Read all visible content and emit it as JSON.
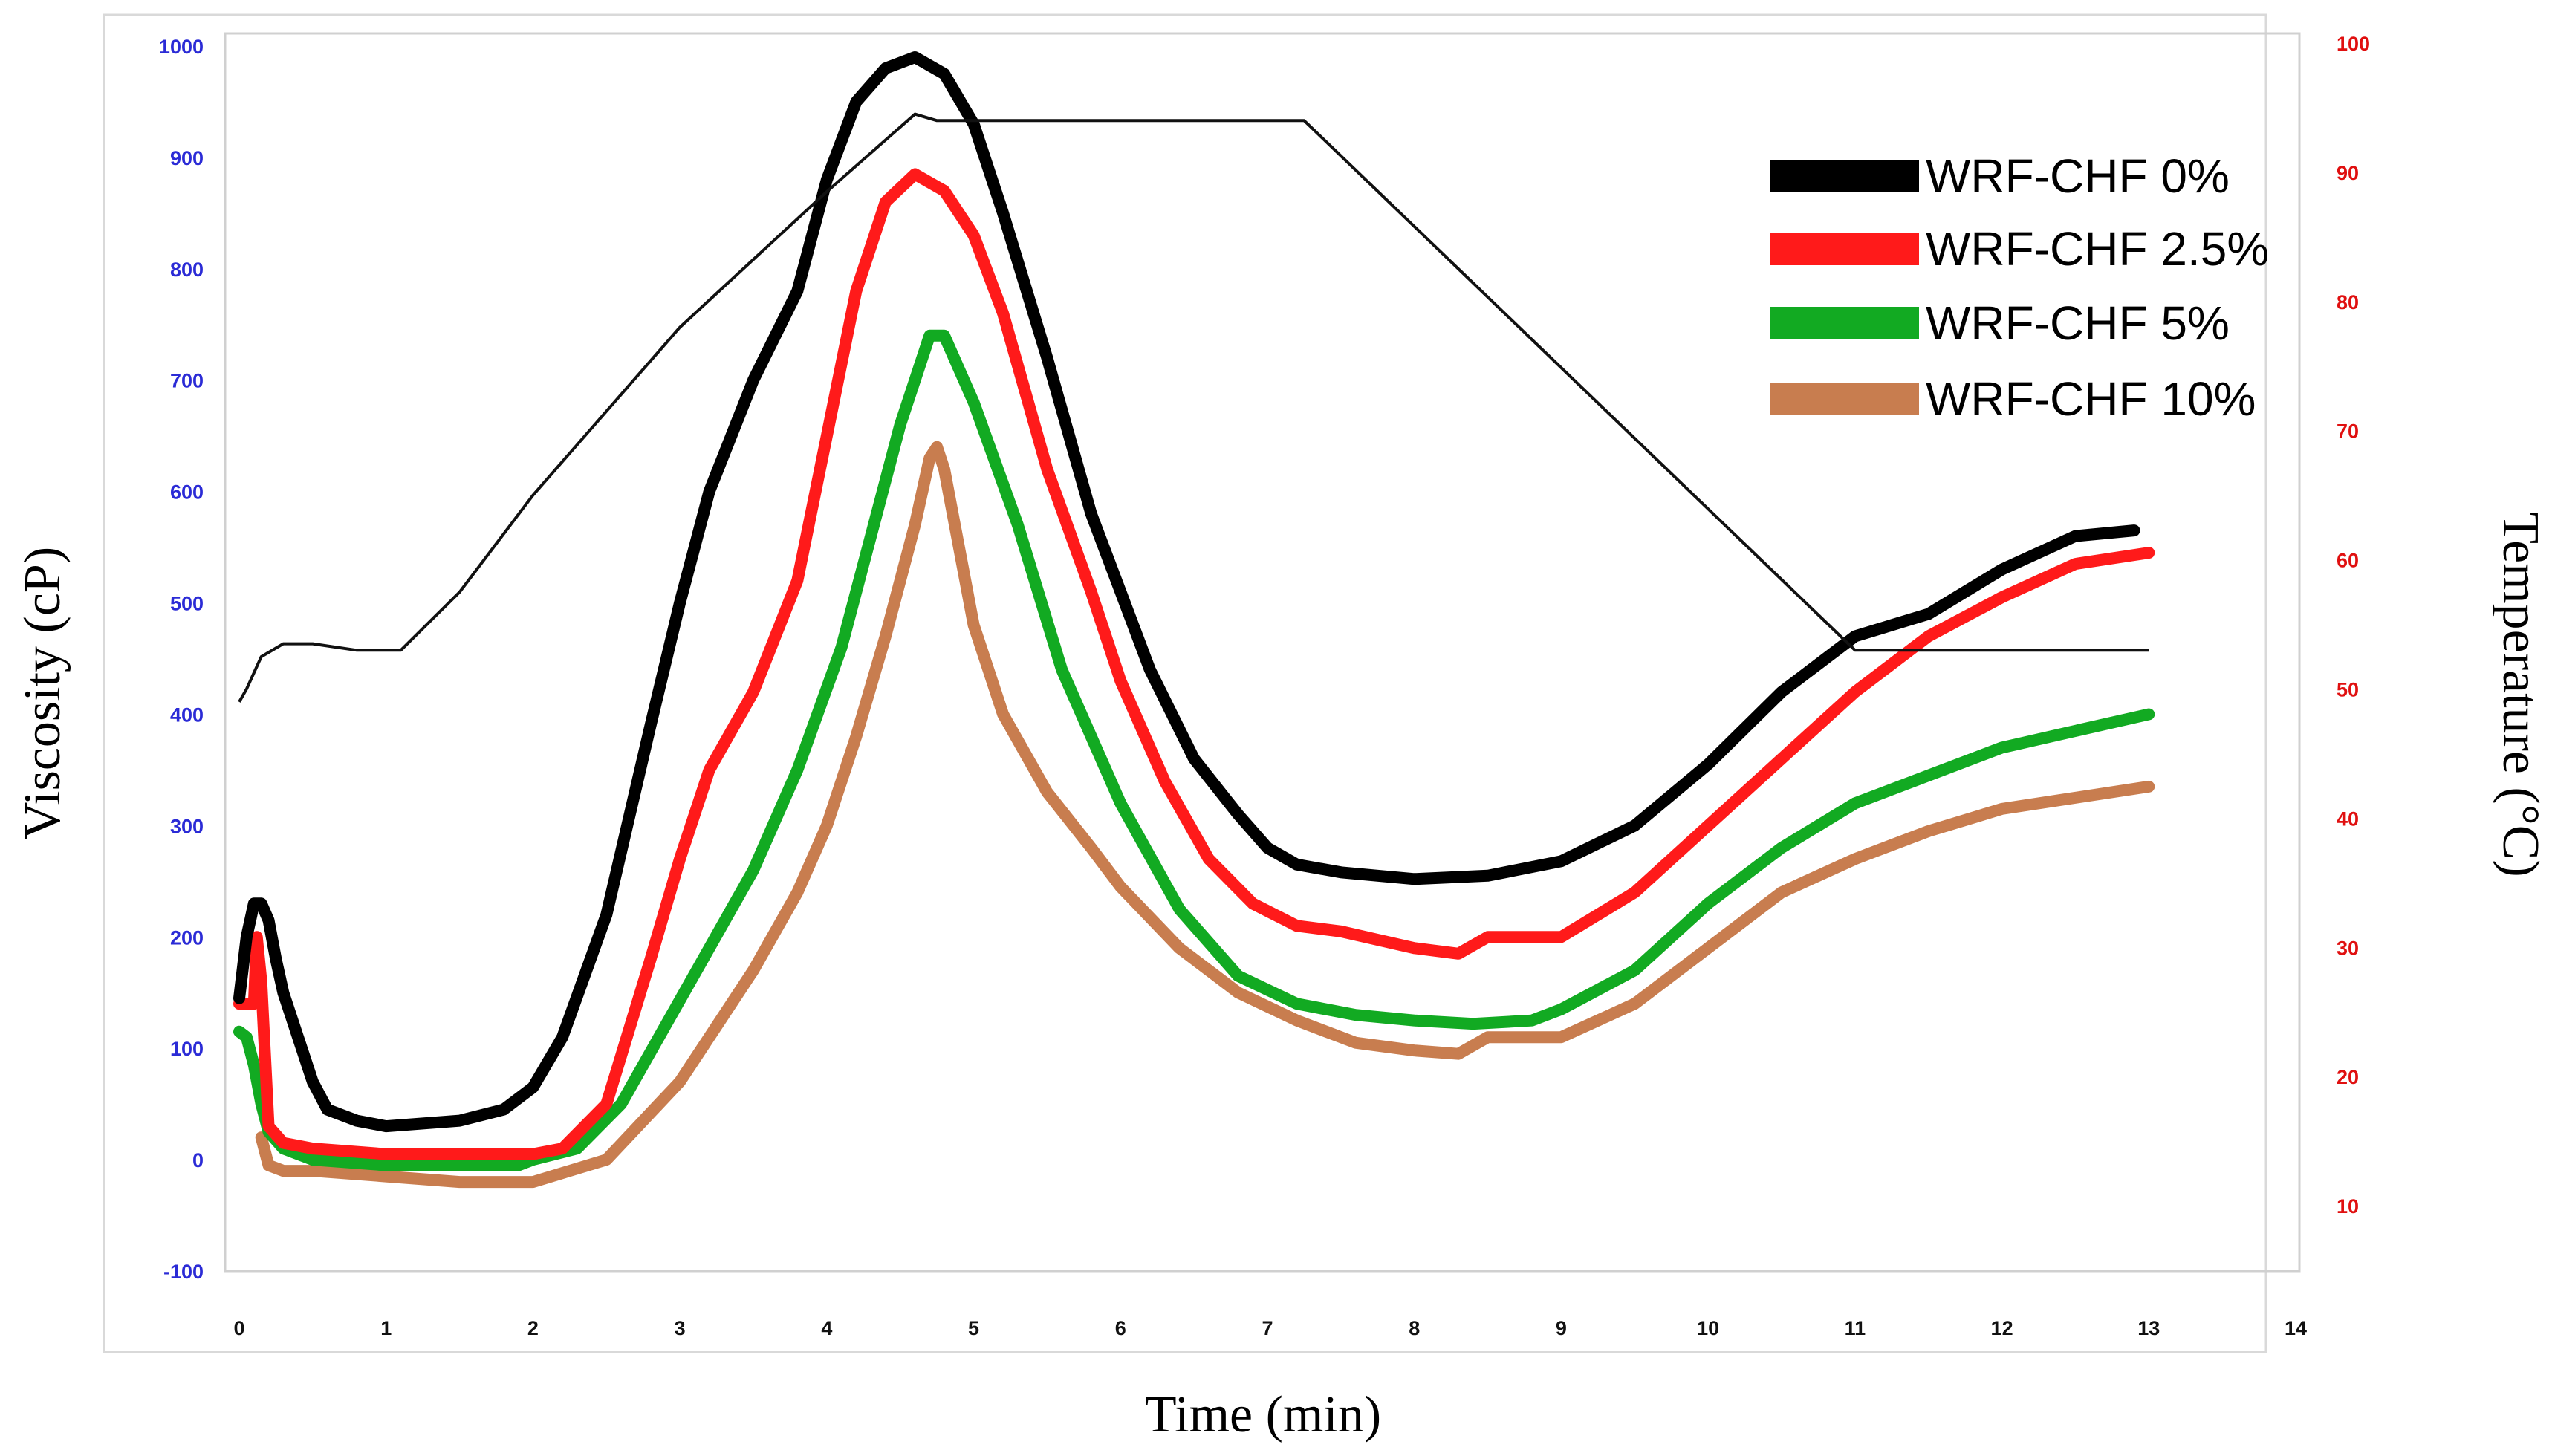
{
  "chart_data": {
    "type": "line",
    "title": "",
    "xlabel": "Time (min)",
    "ylabel_left": "Viscosity (cP)",
    "ylabel_right": "Temperature (°C)",
    "xlim": [
      0,
      14
    ],
    "ylim_left": [
      -100,
      1000
    ],
    "ylim_right": [
      5,
      100
    ],
    "x_ticks": [
      "0",
      "1",
      "2",
      "3",
      "4",
      "5",
      "6",
      "7",
      "8",
      "9",
      "10",
      "11",
      "12",
      "13",
      "14"
    ],
    "y_left_ticks": [
      "-100",
      "0",
      "100",
      "200",
      "300",
      "400",
      "500",
      "600",
      "700",
      "800",
      "900",
      "1000"
    ],
    "y_right_ticks": [
      "10",
      "20",
      "30",
      "40",
      "50",
      "60",
      "70",
      "80",
      "90",
      "100"
    ],
    "grid": false,
    "legend_position": "top-right",
    "colors": {
      "left_axis": "#2b2bd6",
      "right_axis": "#e01010",
      "temperature": "#111111"
    },
    "series": [
      {
        "name": "WRF-CHF 0%",
        "color": "#000000",
        "x": [
          0,
          0.05,
          0.1,
          0.15,
          0.2,
          0.25,
          0.3,
          0.4,
          0.5,
          0.6,
          0.8,
          1.0,
          1.5,
          1.8,
          2.0,
          2.2,
          2.5,
          2.8,
          3.0,
          3.2,
          3.5,
          3.8,
          4.0,
          4.2,
          4.4,
          4.6,
          4.8,
          5.0,
          5.2,
          5.5,
          5.8,
          6.0,
          6.2,
          6.5,
          6.8,
          7.0,
          7.2,
          7.5,
          8.0,
          8.5,
          9.0,
          9.5,
          10.0,
          10.5,
          11.0,
          11.5,
          12.0,
          12.5,
          12.9
        ],
        "values": [
          145,
          200,
          230,
          230,
          215,
          180,
          150,
          110,
          70,
          45,
          35,
          30,
          35,
          45,
          65,
          110,
          220,
          390,
          500,
          600,
          700,
          780,
          880,
          950,
          980,
          990,
          975,
          930,
          850,
          720,
          580,
          510,
          440,
          360,
          310,
          280,
          265,
          258,
          252,
          255,
          268,
          300,
          355,
          420,
          470,
          490,
          530,
          560,
          565
        ]
      },
      {
        "name": "WRF-CHF 2.5%",
        "color": "#ff1a1a",
        "x": [
          0,
          0.1,
          0.12,
          0.15,
          0.2,
          0.3,
          0.5,
          1.0,
          1.5,
          2.0,
          2.2,
          2.5,
          2.8,
          3.0,
          3.2,
          3.5,
          3.8,
          4.0,
          4.2,
          4.4,
          4.6,
          4.8,
          5.0,
          5.2,
          5.5,
          5.8,
          6.0,
          6.3,
          6.6,
          6.9,
          7.2,
          7.5,
          8.0,
          8.3,
          8.5,
          9.0,
          9.5,
          10.0,
          10.5,
          11.0,
          11.5,
          12.0,
          12.5,
          13.0
        ],
        "values": [
          140,
          140,
          200,
          160,
          30,
          15,
          10,
          5,
          5,
          5,
          10,
          50,
          180,
          270,
          350,
          420,
          520,
          650,
          780,
          860,
          885,
          870,
          830,
          760,
          620,
          510,
          430,
          340,
          270,
          230,
          210,
          205,
          190,
          185,
          200,
          200,
          240,
          300,
          360,
          420,
          470,
          505,
          535,
          545
        ]
      },
      {
        "name": "WRF-CHF 5%",
        "color": "#12aa22",
        "x": [
          0,
          0.05,
          0.1,
          0.15,
          0.2,
          0.3,
          0.5,
          1.0,
          1.5,
          1.9,
          2.0,
          2.3,
          2.6,
          2.9,
          3.2,
          3.5,
          3.8,
          4.1,
          4.3,
          4.5,
          4.7,
          4.8,
          5.0,
          5.3,
          5.6,
          6.0,
          6.4,
          6.8,
          7.2,
          7.6,
          8.0,
          8.4,
          8.8,
          9.0,
          9.5,
          10.0,
          10.5,
          11.0,
          11.5,
          12.0,
          12.5,
          13.0
        ],
        "values": [
          115,
          110,
          85,
          50,
          25,
          10,
          0,
          -5,
          -5,
          -5,
          0,
          10,
          50,
          120,
          190,
          260,
          350,
          460,
          560,
          660,
          740,
          740,
          680,
          570,
          440,
          320,
          225,
          165,
          140,
          130,
          125,
          122,
          125,
          135,
          170,
          230,
          280,
          320,
          345,
          370,
          385,
          400
        ]
      },
      {
        "name": "WRF-CHF 10%",
        "color": "#c87d4f",
        "x": [
          0.15,
          0.2,
          0.3,
          0.5,
          1.0,
          1.5,
          2.0,
          2.5,
          3.0,
          3.5,
          3.8,
          4.0,
          4.2,
          4.4,
          4.6,
          4.7,
          4.75,
          4.8,
          5.0,
          5.2,
          5.5,
          5.8,
          6.0,
          6.4,
          6.8,
          7.2,
          7.6,
          8.0,
          8.3,
          8.5,
          9.0,
          9.5,
          10.0,
          10.5,
          11.0,
          11.5,
          12.0,
          12.5,
          13.0
        ],
        "values": [
          20,
          -5,
          -10,
          -10,
          -15,
          -20,
          -20,
          0,
          70,
          170,
          240,
          300,
          380,
          470,
          570,
          630,
          640,
          620,
          480,
          400,
          330,
          280,
          245,
          190,
          150,
          125,
          105,
          98,
          95,
          110,
          110,
          140,
          190,
          240,
          270,
          295,
          315,
          325,
          335
        ]
      }
    ],
    "temperature_series": {
      "name": "Temperature",
      "axis": "right",
      "x": [
        0,
        0.05,
        0.15,
        0.3,
        0.5,
        0.8,
        1.0,
        1.1,
        1.5,
        2.0,
        3.0,
        4.0,
        4.6,
        4.75,
        5.0,
        7.0,
        7.25,
        11.0,
        13.0
      ],
      "values": [
        49,
        50,
        52.5,
        53.5,
        53.5,
        53,
        53,
        53,
        57.5,
        65,
        78,
        88.5,
        94.5,
        94,
        94,
        94,
        94,
        53,
        53
      ]
    }
  }
}
